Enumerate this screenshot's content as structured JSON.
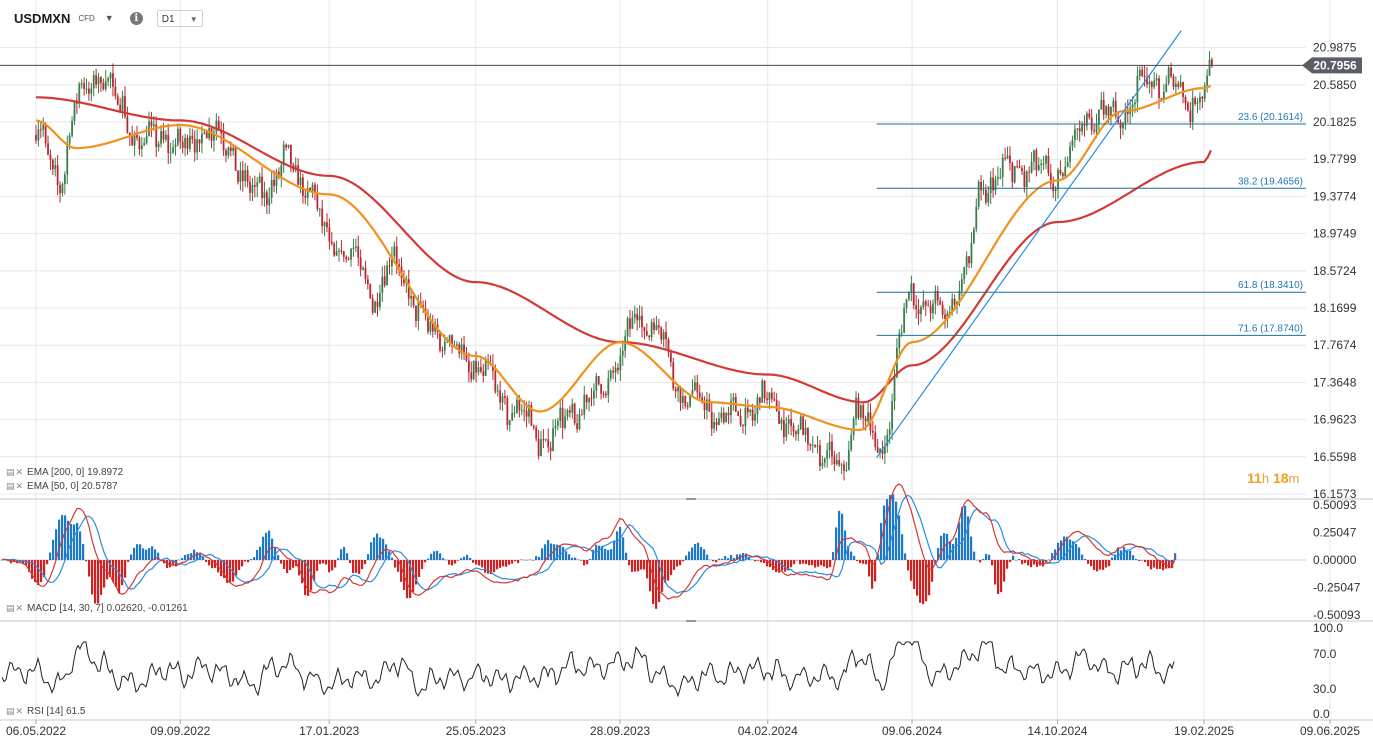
{
  "header": {
    "symbol": "USDMXN",
    "instrument_type": "CFD",
    "timeframe": "D1"
  },
  "timer": {
    "hours": "11",
    "hours_unit": "h",
    "minutes": "18",
    "minutes_unit": "m"
  },
  "colors": {
    "up": "#3a7d4a",
    "down": "#b82830",
    "ema200": "#d23a35",
    "ema50": "#f0921e",
    "fib": "#1e6f9c",
    "trendline": "#2a8ee0",
    "price_line": "#444444",
    "price_label_bg": "#5a5f66",
    "macd_line": "#d23a35",
    "macd_signal": "#2a8ee0",
    "macd_hist_pos": "#1e78c8",
    "macd_hist_neg": "#d0201f",
    "rsi_line": "#222222",
    "grid": "#e7e7e7"
  },
  "indicators": {
    "ema200_label": "EMA [200,  0]  19.8972",
    "ema50_label": "EMA [50,  0]  20.5787",
    "macd_label": "MACD [14,  30,  7]  0.02620,   -0.01261",
    "rsi_label": "RSI [14]  61.5"
  },
  "chart_data": [
    {
      "type": "candlestick",
      "title": "USDMXN D1",
      "ylim": [
        16.1573,
        21.2
      ],
      "y_ticks": [
        "20.9875",
        "20.5850",
        "20.1825",
        "19.7799",
        "19.3774",
        "18.9749",
        "18.5724",
        "18.1699",
        "17.7674",
        "17.3648",
        "16.9623",
        "16.5598",
        "16.1573"
      ],
      "x_ticks": [
        "06.05.2022",
        "09.09.2022",
        "17.01.2023",
        "25.05.2023",
        "28.09.2023",
        "04.02.2024",
        "09.06.2024",
        "14.10.2024",
        "19.02.2025",
        "09.06.2025"
      ],
      "current_price": 20.7956,
      "current_price_label": "20.7956",
      "close_path": [
        [
          "06.05.2022",
          20.1
        ],
        [
          "25.05.2022",
          19.55
        ],
        [
          "13.06.2022",
          20.45
        ],
        [
          "01.07.2022",
          20.72
        ],
        [
          "18.07.2022",
          20.35
        ],
        [
          "05.08.2022",
          19.95
        ],
        [
          "25.08.2022",
          20.05
        ],
        [
          "09.09.2022",
          19.88
        ],
        [
          "30.09.2022",
          20.1
        ],
        [
          "20.10.2022",
          19.95
        ],
        [
          "10.11.2022",
          19.4
        ],
        [
          "25.11.2022",
          19.5
        ],
        [
          "12.12.2022",
          19.75
        ],
        [
          "28.12.2022",
          19.5
        ],
        [
          "17.01.2023",
          18.9
        ],
        [
          "07.02.2023",
          18.7
        ],
        [
          "28.02.2023",
          18.3
        ],
        [
          "15.03.2023",
          18.7
        ],
        [
          "10.04.2023",
          18.0
        ],
        [
          "25.05.2023",
          17.55
        ],
        [
          "25.06.2023",
          17.1
        ],
        [
          "25.07.2023",
          16.75
        ],
        [
          "20.08.2023",
          17.05
        ],
        [
          "05.09.2023",
          17.2
        ],
        [
          "28.09.2023",
          17.6
        ],
        [
          "12.10.2023",
          18.1
        ],
        [
          "28.10.2023",
          17.95
        ],
        [
          "25.11.2023",
          17.2
        ],
        [
          "30.12.2023",
          16.98
        ],
        [
          "04.02.2024",
          17.15
        ],
        [
          "08.03.2024",
          16.75
        ],
        [
          "10.04.2024",
          16.4
        ],
        [
          "20.04.2024",
          17.1
        ],
        [
          "12.05.2024",
          16.65
        ],
        [
          "09.06.2024",
          18.35
        ],
        [
          "20.06.2024",
          18.2
        ],
        [
          "05.07.2024",
          18.1
        ],
        [
          "25.07.2024",
          18.5
        ],
        [
          "10.08.2024",
          19.5
        ],
        [
          "10.09.2024",
          19.7
        ],
        [
          "14.10.2024",
          19.6
        ],
        [
          "10.11.2024",
          20.25
        ],
        [
          "05.12.2024",
          20.25
        ],
        [
          "30.12.2024",
          20.6
        ],
        [
          "20.01.2025",
          20.6
        ],
        [
          "05.02.2025",
          20.4
        ],
        [
          "20.02.2025",
          20.55
        ],
        [
          "27.02.2025",
          20.8
        ]
      ],
      "ema200_path": [
        [
          "06.05.2022",
          20.45
        ],
        [
          "09.09.2022",
          20.2
        ],
        [
          "17.01.2023",
          19.6
        ],
        [
          "25.05.2023",
          18.45
        ],
        [
          "28.09.2023",
          17.8
        ],
        [
          "04.02.2024",
          17.45
        ],
        [
          "28.04.2024",
          17.15
        ],
        [
          "09.06.2024",
          17.55
        ],
        [
          "14.10.2024",
          19.1
        ],
        [
          "19.02.2025",
          19.75
        ],
        [
          "27.02.2025",
          19.8972
        ]
      ],
      "ema50_path": [
        [
          "06.05.2022",
          20.2
        ],
        [
          "10.06.2022",
          19.9
        ],
        [
          "09.09.2022",
          20.15
        ],
        [
          "17.01.2023",
          19.4
        ],
        [
          "25.05.2023",
          17.65
        ],
        [
          "20.07.2023",
          17.05
        ],
        [
          "28.09.2023",
          17.8
        ],
        [
          "15.12.2023",
          17.15
        ],
        [
          "04.02.2024",
          17.1
        ],
        [
          "25.04.2024",
          16.85
        ],
        [
          "09.06.2024",
          17.8
        ],
        [
          "14.10.2024",
          19.55
        ],
        [
          "10.12.2024",
          20.3
        ],
        [
          "19.02.2025",
          20.55
        ],
        [
          "27.02.2025",
          20.5787
        ]
      ],
      "fibonacci": [
        {
          "level": "23.6",
          "value": 20.1614,
          "label": "23.6 (20.1614)"
        },
        {
          "level": "38.2",
          "value": 19.4656,
          "label": "38.2 (19.4656)"
        },
        {
          "level": "61.8",
          "value": 18.341,
          "label": "61.8 (18.3410)"
        },
        {
          "level": "71.6",
          "value": 17.874,
          "label": "71.6 (17.8740)"
        }
      ],
      "fib_start_date": "09.05.2024",
      "trendline": {
        "from": [
          "09.05.2024",
          16.55
        ],
        "to": [
          "30.01.2025",
          21.17
        ]
      }
    },
    {
      "type": "line",
      "title": "MACD [14, 30, 7]",
      "ylim": [
        -0.50093,
        0.50093
      ],
      "y_ticks": [
        "0.50093",
        "0.25047",
        "0.00000",
        "-0.25047",
        "-0.50093"
      ],
      "macd": 0.0262,
      "signal": -0.01261
    },
    {
      "type": "line",
      "title": "RSI [14]",
      "ylim": [
        0,
        100
      ],
      "y_ticks": [
        "100.0",
        "70.0",
        "30.0",
        "0.0"
      ],
      "value": 61.5
    }
  ]
}
